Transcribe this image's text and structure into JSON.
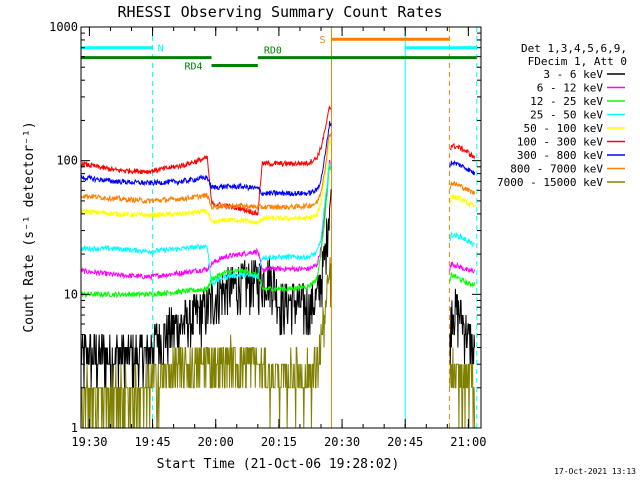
{
  "chart_data": {
    "type": "line",
    "title": "RHESSI Observing Summary Count Rates",
    "xlabel": "Start Time (21-Oct-06 19:28:02)",
    "ylabel": "Count Rate (s⁻¹ detector⁻¹)",
    "y_scale": "log",
    "ylim": [
      1,
      1000
    ],
    "xlim_minutes": [
      0,
      95
    ],
    "x_ticks": [
      {
        "label": "19:30",
        "t": 2
      },
      {
        "label": "19:45",
        "t": 17
      },
      {
        "label": "20:00",
        "t": 32
      },
      {
        "label": "20:15",
        "t": 47
      },
      {
        "label": "20:30",
        "t": 62
      },
      {
        "label": "20:45",
        "t": 77
      },
      {
        "label": "21:00",
        "t": 92
      }
    ],
    "y_ticks": [
      {
        "label": "1",
        "v": 1
      },
      {
        "label": "10",
        "v": 10
      },
      {
        "label": "100",
        "v": 100
      },
      {
        "label": "1000",
        "v": 1000
      }
    ],
    "legend_header": [
      "Det 1,3,4,5,6,9,",
      "FDecim 1, Att 0"
    ],
    "legend_placement": "right",
    "gaps": [
      [
        59.5,
        87.5
      ]
    ],
    "series": [
      {
        "name": "3 - 6 keV",
        "color": "#000000",
        "x": [
          0,
          8,
          16,
          17,
          19,
          22,
          26,
          30,
          31,
          33,
          36,
          40,
          42,
          44,
          45,
          46,
          47,
          50,
          52,
          54,
          55,
          56,
          57,
          58,
          59,
          87.5,
          88,
          90,
          91,
          92,
          93,
          93.5
        ],
        "y": [
          3.5,
          3.5,
          3.5,
          4.4,
          4.8,
          5.5,
          6.5,
          8,
          9,
          10.5,
          11.5,
          12.5,
          13,
          13.5,
          13.5,
          12.5,
          8.5,
          9,
          8.5,
          8,
          8.5,
          9.5,
          13,
          20,
          50,
          4,
          8,
          7,
          6,
          5,
          4,
          3.5
        ]
      },
      {
        "name": "6 - 12 keV",
        "color": "#ff00ff",
        "x": [
          0,
          8,
          16,
          24,
          30,
          31,
          34,
          38,
          42,
          43,
          44,
          47,
          50,
          54,
          56,
          57,
          58,
          59,
          87.5,
          88,
          90,
          92,
          93.5
        ],
        "y": [
          15,
          14,
          13.5,
          14.5,
          15.5,
          17,
          19,
          20,
          21,
          15,
          15.5,
          15.5,
          15.5,
          15.5,
          16.5,
          22,
          45,
          100,
          15,
          17,
          16,
          15,
          15
        ]
      },
      {
        "name": "12 - 25 keV",
        "color": "#00ff00",
        "x": [
          0,
          8,
          16,
          24,
          30,
          31,
          34,
          38,
          42,
          43,
          44,
          47,
          50,
          54,
          56,
          57,
          58,
          59,
          87.5,
          88,
          90,
          92,
          93.5
        ],
        "y": [
          10,
          10,
          10,
          10.5,
          11,
          13,
          14.5,
          15,
          14,
          11,
          11,
          11,
          11,
          11.5,
          13,
          20,
          40,
          90,
          12,
          14,
          13,
          12,
          12
        ]
      },
      {
        "name": "25 - 50 keV",
        "color": "#00ffff",
        "x": [
          0,
          8,
          16,
          24,
          30,
          31,
          34,
          38,
          42,
          43,
          44,
          47,
          50,
          54,
          56,
          57,
          58,
          59,
          87.5,
          88,
          90,
          92,
          93.5
        ],
        "y": [
          22,
          22,
          21,
          22,
          23,
          12,
          13.5,
          14,
          13.5,
          19,
          19,
          19,
          19,
          19,
          20.5,
          26,
          50,
          95,
          25,
          28,
          27,
          25,
          23
        ]
      },
      {
        "name": "50 - 100 keV",
        "color": "#ffff00",
        "x": [
          0,
          8,
          16,
          24,
          30,
          31,
          34,
          38,
          42,
          43,
          44,
          47,
          50,
          54,
          56,
          57,
          58,
          59,
          87.5,
          88,
          90,
          92,
          93.5
        ],
        "y": [
          42,
          40,
          39,
          40,
          42,
          34,
          36,
          36,
          34,
          37,
          37,
          37,
          37,
          37,
          39,
          48,
          80,
          140,
          48,
          54,
          52,
          48,
          45
        ]
      },
      {
        "name": "100 - 300 keV",
        "color": "#ff0000",
        "x": [
          0,
          8,
          16,
          24,
          30,
          31,
          34,
          38,
          42,
          43,
          44,
          47,
          50,
          54,
          56,
          57,
          58,
          59,
          87.5,
          88,
          90,
          92,
          93.5
        ],
        "y": [
          95,
          85,
          83,
          92,
          105,
          48,
          46,
          44,
          40,
          95,
          95,
          95,
          95,
          96,
          105,
          125,
          170,
          250,
          120,
          130,
          125,
          115,
          105
        ]
      },
      {
        "name": "300 - 800 keV",
        "color": "#0000ff",
        "x": [
          0,
          8,
          16,
          24,
          30,
          31,
          34,
          38,
          42,
          43,
          44,
          47,
          50,
          54,
          56,
          57,
          58,
          59,
          87.5,
          88,
          90,
          92,
          93.5
        ],
        "y": [
          75,
          70,
          68,
          70,
          75,
          63,
          64,
          64,
          62,
          57,
          57,
          57,
          57,
          57,
          60,
          72,
          110,
          190,
          90,
          97,
          93,
          86,
          80
        ]
      },
      {
        "name": "800 - 7000 keV",
        "color": "#ff8000",
        "x": [
          0,
          8,
          16,
          24,
          30,
          31,
          34,
          38,
          42,
          43,
          44,
          47,
          50,
          54,
          56,
          57,
          58,
          59,
          87.5,
          88,
          90,
          92,
          93.5
        ],
        "y": [
          55,
          52,
          50,
          52,
          55,
          45,
          46,
          46,
          45,
          45,
          45,
          45,
          45,
          46,
          48,
          58,
          90,
          160,
          62,
          68,
          65,
          60,
          57
        ]
      },
      {
        "name": "7000 - 15000 keV",
        "color": "#808000",
        "x": [
          0,
          8,
          16,
          17,
          22,
          28,
          32,
          36,
          40,
          42,
          44,
          46,
          48,
          50,
          52,
          54,
          55,
          56,
          57,
          58,
          59,
          87.5,
          88,
          90,
          92,
          93.5
        ],
        "y": [
          1.8,
          1.8,
          1.8,
          2.3,
          2.7,
          2.9,
          3.1,
          3.2,
          3.2,
          3.0,
          2.6,
          2.4,
          2.4,
          2.5,
          2.6,
          2.5,
          2.6,
          3.0,
          4.5,
          7,
          14,
          2,
          2.5,
          2.4,
          2.3,
          2.2
        ]
      }
    ],
    "annotations": {
      "bars": [
        {
          "label": "N",
          "color": "#00ffff",
          "t0": 0,
          "t1": 17,
          "v": 700
        },
        {
          "label": "",
          "color": "#00ffff",
          "t0": 77,
          "t1": 94,
          "v": 700
        },
        {
          "label": "S",
          "color": "#ff8000",
          "t0": 59.5,
          "t1": 87.5,
          "v": 810
        },
        {
          "label": "",
          "color": "#008000",
          "t0": 0,
          "t1": 31,
          "v": 590
        },
        {
          "label": "RD4",
          "color": "#008000",
          "t0": 31,
          "t1": 42,
          "v": 515
        },
        {
          "label": "RD0",
          "color": "#008000",
          "t0": 42,
          "t1": 94,
          "v": 590
        }
      ],
      "vlines": [
        {
          "t": 0,
          "color": "#00ffff",
          "style": "solid"
        },
        {
          "t": 17,
          "color": "#00ffff",
          "style": "dashed"
        },
        {
          "t": 59.5,
          "color": "#ff8000",
          "style": "solid"
        },
        {
          "t": 77,
          "color": "#00ffff",
          "style": "solid"
        },
        {
          "t": 87.5,
          "color": "#ff8000",
          "style": "dashed"
        },
        {
          "t": 94,
          "color": "#00ffff",
          "style": "dashed"
        }
      ]
    }
  },
  "footer": {
    "timestamp": "17-Oct-2021 13:13"
  }
}
